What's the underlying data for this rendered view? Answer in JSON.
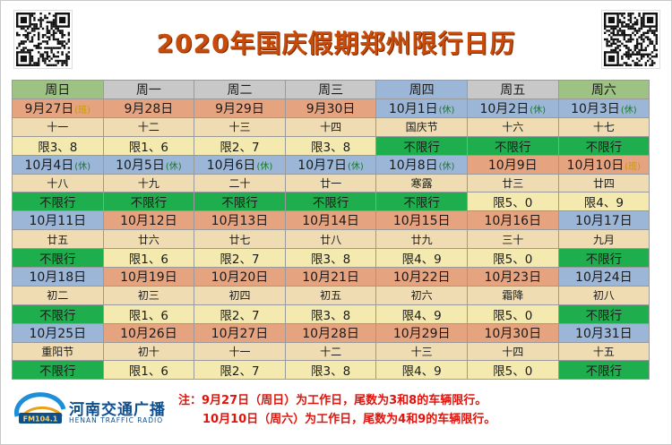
{
  "title": "2020年国庆假期郑州限行日历",
  "header": [
    "周日",
    "周一",
    "周二",
    "周三",
    "周四",
    "周五",
    "周六"
  ],
  "header_colors": [
    "#9dc284",
    "#c8c8c8",
    "#c8c8c8",
    "#c8c8c8",
    "#9bb6d6",
    "#c8c8c8",
    "#9dc284"
  ],
  "weeks": [
    [
      {
        "date": "9月27日",
        "tag": "(班)",
        "tag_type": "work",
        "lunar": "十一",
        "rule": "限3、8",
        "bg": "#e6a380",
        "rule_bg": "#f4eab0"
      },
      {
        "date": "9月28日",
        "tag": "",
        "tag_type": "",
        "lunar": "十二",
        "rule": "限1、6",
        "bg": "#e6a380",
        "rule_bg": "#f4eab0"
      },
      {
        "date": "9月29日",
        "tag": "",
        "tag_type": "",
        "lunar": "十三",
        "rule": "限2、7",
        "bg": "#e6a380",
        "rule_bg": "#f4eab0"
      },
      {
        "date": "9月30日",
        "tag": "",
        "tag_type": "",
        "lunar": "十四",
        "rule": "限3、8",
        "bg": "#e6a380",
        "rule_bg": "#f4eab0"
      },
      {
        "date": "10月1日",
        "tag": "(休)",
        "tag_type": "rest",
        "lunar": "国庆节",
        "rule": "不限行",
        "bg": "#9bb6d6",
        "rule_bg": "#1fae4e"
      },
      {
        "date": "10月2日",
        "tag": "(休)",
        "tag_type": "rest",
        "lunar": "十六",
        "rule": "不限行",
        "bg": "#9bb6d6",
        "rule_bg": "#1fae4e"
      },
      {
        "date": "10月3日",
        "tag": "(休)",
        "tag_type": "rest",
        "lunar": "十七",
        "rule": "不限行",
        "bg": "#9bb6d6",
        "rule_bg": "#1fae4e"
      }
    ],
    [
      {
        "date": "10月4日",
        "tag": "(休)",
        "tag_type": "rest",
        "lunar": "十八",
        "rule": "不限行",
        "bg": "#9bb6d6",
        "rule_bg": "#1fae4e"
      },
      {
        "date": "10月5日",
        "tag": "(休)",
        "tag_type": "rest",
        "lunar": "十九",
        "rule": "不限行",
        "bg": "#9bb6d6",
        "rule_bg": "#1fae4e"
      },
      {
        "date": "10月6日",
        "tag": "(休)",
        "tag_type": "rest",
        "lunar": "二十",
        "rule": "不限行",
        "bg": "#9bb6d6",
        "rule_bg": "#1fae4e"
      },
      {
        "date": "10月7日",
        "tag": "(休)",
        "tag_type": "rest",
        "lunar": "廿一",
        "rule": "不限行",
        "bg": "#9bb6d6",
        "rule_bg": "#1fae4e"
      },
      {
        "date": "10月8日",
        "tag": "(休)",
        "tag_type": "rest",
        "lunar": "寒露",
        "rule": "不限行",
        "bg": "#9bb6d6",
        "rule_bg": "#1fae4e"
      },
      {
        "date": "10月9日",
        "tag": "",
        "tag_type": "",
        "lunar": "廿三",
        "rule": "限5、0",
        "bg": "#e6a380",
        "rule_bg": "#f4eab0"
      },
      {
        "date": "10月10日",
        "tag": "(班)",
        "tag_type": "work",
        "lunar": "廿四",
        "rule": "限4、9",
        "bg": "#e6a380",
        "rule_bg": "#f4eab0"
      }
    ],
    [
      {
        "date": "10月11日",
        "tag": "",
        "tag_type": "",
        "lunar": "廿五",
        "rule": "不限行",
        "bg": "#9bb6d6",
        "rule_bg": "#1fae4e"
      },
      {
        "date": "10月12日",
        "tag": "",
        "tag_type": "",
        "lunar": "廿六",
        "rule": "限1、6",
        "bg": "#e6a380",
        "rule_bg": "#f4eab0"
      },
      {
        "date": "10月13日",
        "tag": "",
        "tag_type": "",
        "lunar": "廿七",
        "rule": "限2、7",
        "bg": "#e6a380",
        "rule_bg": "#f4eab0"
      },
      {
        "date": "10月14日",
        "tag": "",
        "tag_type": "",
        "lunar": "廿八",
        "rule": "限3、8",
        "bg": "#e6a380",
        "rule_bg": "#f4eab0"
      },
      {
        "date": "10月15日",
        "tag": "",
        "tag_type": "",
        "lunar": "廿九",
        "rule": "限4、9",
        "bg": "#e6a380",
        "rule_bg": "#f4eab0"
      },
      {
        "date": "10月16日",
        "tag": "",
        "tag_type": "",
        "lunar": "三十",
        "rule": "限5、0",
        "bg": "#e6a380",
        "rule_bg": "#f4eab0"
      },
      {
        "date": "10月17日",
        "tag": "",
        "tag_type": "",
        "lunar": "九月",
        "rule": "不限行",
        "bg": "#9bb6d6",
        "rule_bg": "#1fae4e"
      }
    ],
    [
      {
        "date": "10月18日",
        "tag": "",
        "tag_type": "",
        "lunar": "初二",
        "rule": "不限行",
        "bg": "#9bb6d6",
        "rule_bg": "#1fae4e"
      },
      {
        "date": "10月19日",
        "tag": "",
        "tag_type": "",
        "lunar": "初三",
        "rule": "限1、6",
        "bg": "#e6a380",
        "rule_bg": "#f4eab0"
      },
      {
        "date": "10月20日",
        "tag": "",
        "tag_type": "",
        "lunar": "初四",
        "rule": "限2、7",
        "bg": "#e6a380",
        "rule_bg": "#f4eab0"
      },
      {
        "date": "10月21日",
        "tag": "",
        "tag_type": "",
        "lunar": "初五",
        "rule": "限3、8",
        "bg": "#e6a380",
        "rule_bg": "#f4eab0"
      },
      {
        "date": "10月22日",
        "tag": "",
        "tag_type": "",
        "lunar": "初六",
        "rule": "限4、9",
        "bg": "#e6a380",
        "rule_bg": "#f4eab0"
      },
      {
        "date": "10月23日",
        "tag": "",
        "tag_type": "",
        "lunar": "霜降",
        "rule": "限5、0",
        "bg": "#e6a380",
        "rule_bg": "#f4eab0"
      },
      {
        "date": "10月24日",
        "tag": "",
        "tag_type": "",
        "lunar": "初八",
        "rule": "不限行",
        "bg": "#9bb6d6",
        "rule_bg": "#1fae4e"
      }
    ],
    [
      {
        "date": "10月25日",
        "tag": "",
        "tag_type": "",
        "lunar": "重阳节",
        "rule": "不限行",
        "bg": "#9bb6d6",
        "rule_bg": "#1fae4e"
      },
      {
        "date": "10月26日",
        "tag": "",
        "tag_type": "",
        "lunar": "初十",
        "rule": "限1、6",
        "bg": "#e6a380",
        "rule_bg": "#f4eab0"
      },
      {
        "date": "10月27日",
        "tag": "",
        "tag_type": "",
        "lunar": "十一",
        "rule": "限2、7",
        "bg": "#e6a380",
        "rule_bg": "#f4eab0"
      },
      {
        "date": "10月28日",
        "tag": "",
        "tag_type": "",
        "lunar": "十二",
        "rule": "限3、8",
        "bg": "#e6a380",
        "rule_bg": "#f4eab0"
      },
      {
        "date": "10月29日",
        "tag": "",
        "tag_type": "",
        "lunar": "十三",
        "rule": "限4、9",
        "bg": "#e6a380",
        "rule_bg": "#f4eab0"
      },
      {
        "date": "10月30日",
        "tag": "",
        "tag_type": "",
        "lunar": "十四",
        "rule": "限5、0",
        "bg": "#e6a380",
        "rule_bg": "#f4eab0"
      },
      {
        "date": "10月31日",
        "tag": "",
        "tag_type": "",
        "lunar": "十五",
        "rule": "不限行",
        "bg": "#9bb6d6",
        "rule_bg": "#1fae4e"
      }
    ]
  ],
  "lunar_bg": "#efdcb3",
  "logo": {
    "name": "河南交通广播",
    "sub": "HENAN TRAFFIC RADIO",
    "mark_text": "FM104.1"
  },
  "notes": [
    "注：9月27日（周日）为工作日，尾数为3和8的车辆限行。",
    "10月10日（周六）为工作日，尾数为4和9的车辆限行。"
  ],
  "colors": {
    "title": "#c84b0a",
    "note": "#e0140c",
    "logo": "#0e4f8f"
  }
}
